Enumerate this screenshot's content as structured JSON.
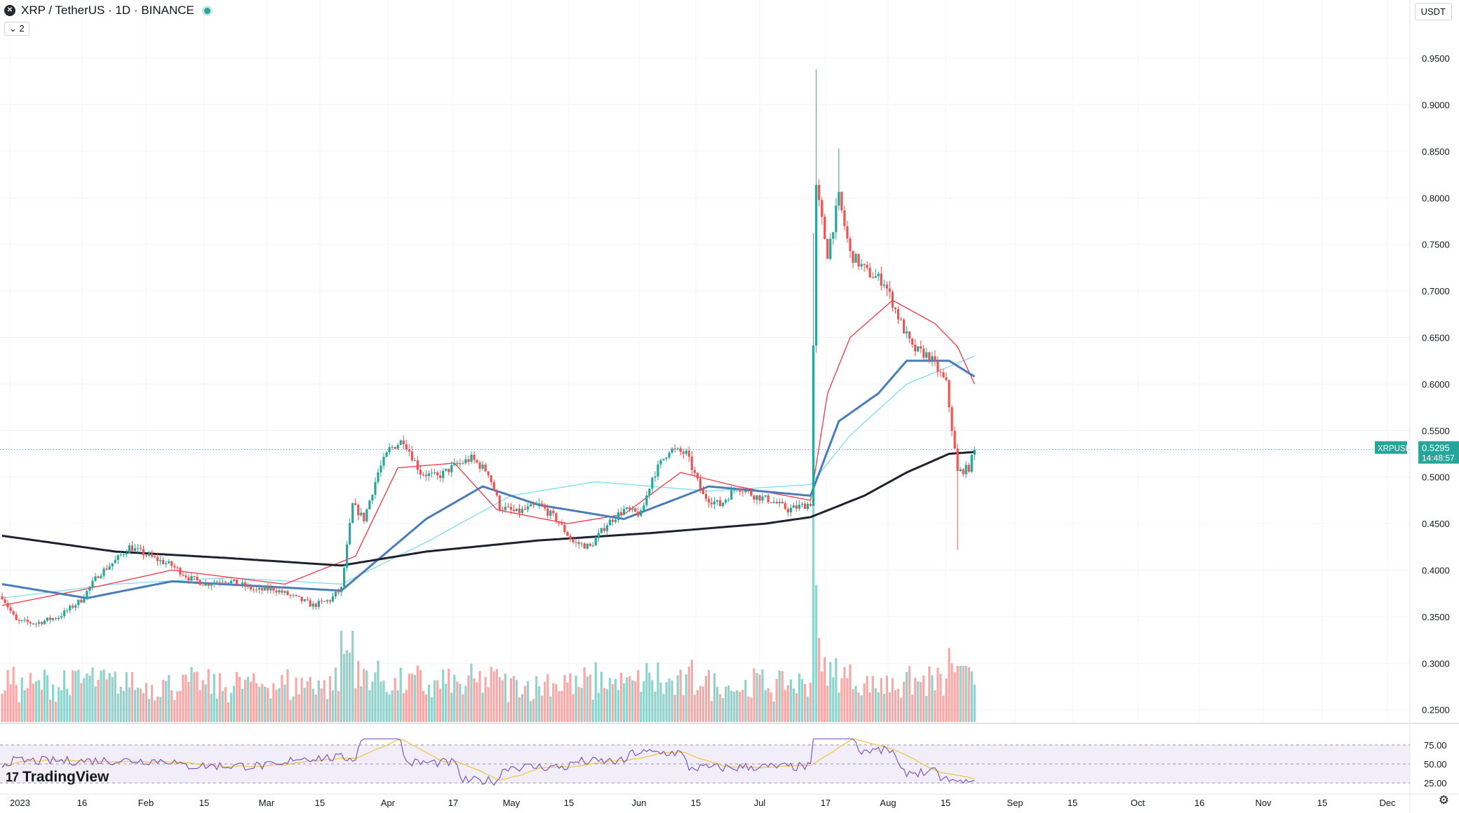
{
  "header": {
    "symbol_icon": "xrp-coin-icon",
    "title": "XRP / TetherUS · 1D · BINANCE",
    "collapse_count": "2",
    "currency": "USDT"
  },
  "branding": {
    "logo_text": "TradingView",
    "logo_mark": "17"
  },
  "colors": {
    "up": "#26a69a",
    "down": "#ef5350",
    "ma_fast": "#f23645",
    "ma_mid": "#4a7cb8",
    "ma_light": "#7fdcf0",
    "ma_slow": "#1e222d",
    "rsi": "#7e57c2",
    "rsi_ma": "#f0c74d"
  },
  "chart_data": {
    "type": "candlestick",
    "symbol": "XRPUSDT",
    "price_axis": {
      "ticks": [
        "0.2500",
        "0.3000",
        "0.3500",
        "0.4000",
        "0.4500",
        "0.5000",
        "0.5500",
        "0.6000",
        "0.6500",
        "0.7000",
        "0.7500",
        "0.8000",
        "0.8500",
        "0.9000",
        "0.9500"
      ],
      "range": [
        0.237,
        0.99
      ]
    },
    "time_axis": {
      "labels": [
        "2023",
        "16",
        "Feb",
        "15",
        "Mar",
        "15",
        "Apr",
        "17",
        "May",
        "15",
        "Jun",
        "15",
        "Jul",
        "17",
        "Aug",
        "15",
        "Sep",
        "15",
        "Oct",
        "16",
        "Nov",
        "15",
        "Dec"
      ]
    },
    "last_price": {
      "label": "XRPUSDT",
      "value": "0.5295",
      "countdown": "14:48:57"
    },
    "rsi": {
      "levels": [
        "75.00",
        "50.00",
        "25.00"
      ],
      "range": [
        15,
        85
      ]
    },
    "price_path": [
      [
        0,
        0.372
      ],
      [
        5,
        0.345
      ],
      [
        12,
        0.343
      ],
      [
        20,
        0.35
      ],
      [
        28,
        0.368
      ],
      [
        34,
        0.395
      ],
      [
        40,
        0.41
      ],
      [
        45,
        0.425
      ],
      [
        52,
        0.415
      ],
      [
        60,
        0.405
      ],
      [
        66,
        0.392
      ],
      [
        72,
        0.385
      ],
      [
        78,
        0.39
      ],
      [
        84,
        0.385
      ],
      [
        90,
        0.378
      ],
      [
        96,
        0.38
      ],
      [
        104,
        0.37
      ],
      [
        110,
        0.362
      ],
      [
        116,
        0.368
      ],
      [
        120,
        0.38
      ],
      [
        124,
        0.47
      ],
      [
        128,
        0.455
      ],
      [
        133,
        0.505
      ],
      [
        137,
        0.53
      ],
      [
        142,
        0.54
      ],
      [
        148,
        0.505
      ],
      [
        154,
        0.5
      ],
      [
        160,
        0.512
      ],
      [
        166,
        0.52
      ],
      [
        172,
        0.505
      ],
      [
        176,
        0.468
      ],
      [
        182,
        0.462
      ],
      [
        190,
        0.47
      ],
      [
        196,
        0.455
      ],
      [
        202,
        0.43
      ],
      [
        208,
        0.425
      ],
      [
        214,
        0.45
      ],
      [
        220,
        0.465
      ],
      [
        226,
        0.46
      ],
      [
        230,
        0.5
      ],
      [
        236,
        0.53
      ],
      [
        242,
        0.525
      ],
      [
        248,
        0.48
      ],
      [
        254,
        0.47
      ],
      [
        260,
        0.49
      ],
      [
        266,
        0.48
      ],
      [
        272,
        0.475
      ],
      [
        278,
        0.465
      ],
      [
        284,
        0.47
      ],
      [
        286,
        0.472
      ],
      [
        288,
        0.81
      ],
      [
        292,
        0.74
      ],
      [
        296,
        0.8
      ],
      [
        300,
        0.74
      ],
      [
        306,
        0.72
      ],
      [
        312,
        0.71
      ],
      [
        318,
        0.665
      ],
      [
        322,
        0.638
      ],
      [
        328,
        0.63
      ],
      [
        334,
        0.6
      ],
      [
        338,
        0.505
      ],
      [
        342,
        0.51
      ],
      [
        344,
        0.5295
      ]
    ],
    "ma_slow_path": [
      [
        0,
        0.437
      ],
      [
        40,
        0.42
      ],
      [
        80,
        0.413
      ],
      [
        120,
        0.405
      ],
      [
        150,
        0.42
      ],
      [
        190,
        0.432
      ],
      [
        230,
        0.44
      ],
      [
        270,
        0.45
      ],
      [
        286,
        0.457
      ],
      [
        305,
        0.48
      ],
      [
        320,
        0.505
      ],
      [
        335,
        0.525
      ],
      [
        344,
        0.527
      ]
    ],
    "ma_mid_path": [
      [
        0,
        0.385
      ],
      [
        30,
        0.37
      ],
      [
        60,
        0.388
      ],
      [
        90,
        0.383
      ],
      [
        120,
        0.378
      ],
      [
        150,
        0.455
      ],
      [
        170,
        0.49
      ],
      [
        190,
        0.47
      ],
      [
        220,
        0.455
      ],
      [
        250,
        0.49
      ],
      [
        286,
        0.48
      ],
      [
        296,
        0.56
      ],
      [
        310,
        0.59
      ],
      [
        320,
        0.625
      ],
      [
        335,
        0.625
      ],
      [
        344,
        0.608
      ]
    ],
    "ma_light_path": [
      [
        0,
        0.37
      ],
      [
        40,
        0.385
      ],
      [
        80,
        0.392
      ],
      [
        120,
        0.385
      ],
      [
        150,
        0.43
      ],
      [
        180,
        0.48
      ],
      [
        210,
        0.495
      ],
      [
        250,
        0.485
      ],
      [
        286,
        0.492
      ],
      [
        300,
        0.545
      ],
      [
        320,
        0.6
      ],
      [
        344,
        0.63
      ]
    ],
    "ma_fast_path": [
      [
        0,
        0.362
      ],
      [
        30,
        0.38
      ],
      [
        60,
        0.4
      ],
      [
        100,
        0.385
      ],
      [
        125,
        0.415
      ],
      [
        140,
        0.51
      ],
      [
        160,
        0.515
      ],
      [
        175,
        0.465
      ],
      [
        200,
        0.45
      ],
      [
        220,
        0.46
      ],
      [
        240,
        0.505
      ],
      [
        260,
        0.49
      ],
      [
        286,
        0.475
      ],
      [
        292,
        0.59
      ],
      [
        300,
        0.65
      ],
      [
        315,
        0.69
      ],
      [
        330,
        0.665
      ],
      [
        338,
        0.64
      ],
      [
        344,
        0.6
      ]
    ]
  }
}
